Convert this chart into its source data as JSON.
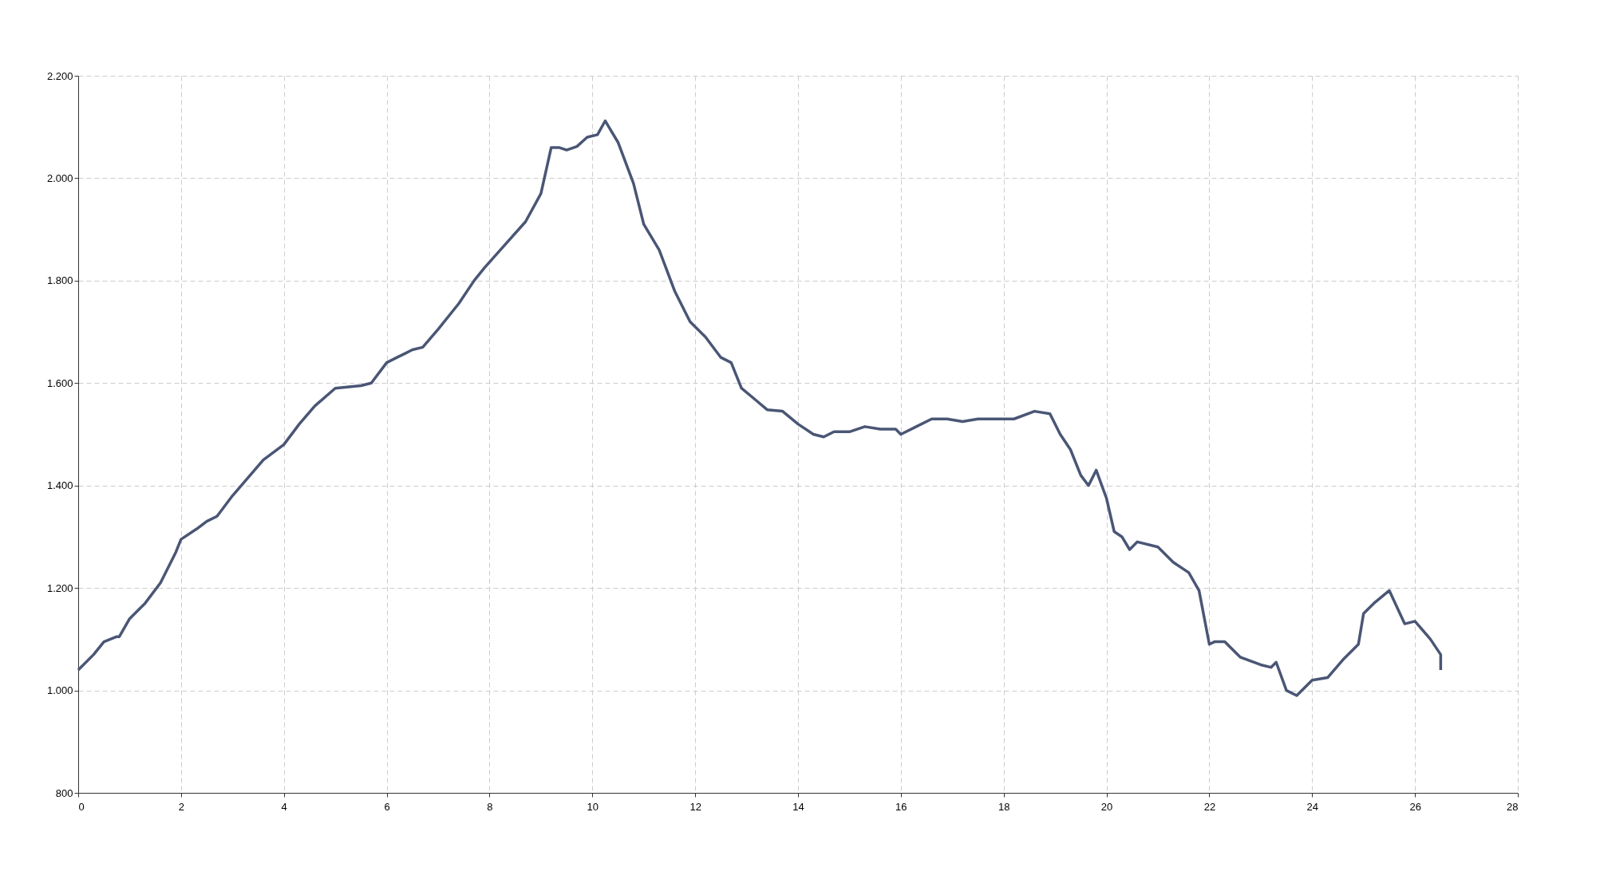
{
  "chart_data": {
    "type": "line",
    "xlim": [
      0,
      28
    ],
    "xticks": [
      0,
      2,
      4,
      6,
      8,
      10,
      12,
      14,
      16,
      18,
      20,
      22,
      24,
      26,
      28
    ],
    "ylim": [
      800,
      2200
    ],
    "yticks": [
      {
        "value": 800,
        "label": "800"
      },
      {
        "value": 1000,
        "label": "1.000"
      },
      {
        "value": 1200,
        "label": "1.200"
      },
      {
        "value": 1400,
        "label": "1.400"
      },
      {
        "value": 1600,
        "label": "1.600"
      },
      {
        "value": 1800,
        "label": "1.800"
      },
      {
        "value": 2000,
        "label": "2.000"
      },
      {
        "value": 2200,
        "label": "2.200"
      }
    ],
    "grid": true,
    "line_style": "solid",
    "series": [
      {
        "color": "#4a5675",
        "x": [
          0,
          0.3,
          0.5,
          0.75,
          0.8,
          1,
          1.3,
          1.6,
          1.9,
          2,
          2.3,
          2.5,
          2.7,
          3,
          3.3,
          3.6,
          4,
          4.3,
          4.6,
          5,
          5.5,
          5.7,
          6,
          6.2,
          6.5,
          6.7,
          7,
          7.4,
          7.7,
          7.9,
          8.3,
          8.7,
          9,
          9.2,
          9.35,
          9.5,
          9.7,
          9.9,
          10.1,
          10.25,
          10.5,
          10.8,
          11,
          11.3,
          11.6,
          11.9,
          12.2,
          12.5,
          12.7,
          12.9,
          13.2,
          13.4,
          13.7,
          14,
          14.3,
          14.5,
          14.7,
          15,
          15.3,
          15.6,
          15.9,
          16,
          16.3,
          16.6,
          16.9,
          17.2,
          17.5,
          17.8,
          18.2,
          18.6,
          18.9,
          19.1,
          19.3,
          19.5,
          19.65,
          19.8,
          20,
          20.15,
          20.3,
          20.45,
          20.6,
          21,
          21.3,
          21.6,
          21.8,
          22,
          22.1,
          22.3,
          22.6,
          23,
          23.2,
          23.3,
          23.5,
          23.7,
          24,
          24.3,
          24.6,
          24.9,
          25,
          25.2,
          25.5,
          25.8,
          26,
          26.3,
          26.5,
          26.5
        ],
        "values": [
          1040,
          1070,
          1095,
          1105,
          1105,
          1140,
          1170,
          1210,
          1270,
          1295,
          1315,
          1330,
          1340,
          1380,
          1415,
          1450,
          1480,
          1520,
          1555,
          1590,
          1595,
          1600,
          1640,
          1650,
          1665,
          1670,
          1705,
          1755,
          1800,
          1825,
          1870,
          1915,
          1970,
          2060,
          2060,
          2055,
          2062,
          2080,
          2085,
          2112,
          2070,
          1990,
          1910,
          1860,
          1780,
          1720,
          1690,
          1650,
          1640,
          1590,
          1565,
          1548,
          1545,
          1520,
          1500,
          1495,
          1505,
          1505,
          1515,
          1510,
          1510,
          1500,
          1515,
          1530,
          1530,
          1525,
          1530,
          1530,
          1530,
          1545,
          1540,
          1500,
          1470,
          1420,
          1400,
          1430,
          1375,
          1310,
          1300,
          1275,
          1290,
          1280,
          1250,
          1230,
          1195,
          1090,
          1095,
          1095,
          1065,
          1050,
          1045,
          1055,
          1000,
          990,
          1020,
          1025,
          1060,
          1090,
          1150,
          1170,
          1195,
          1130,
          1135,
          1100,
          1070,
          1040
        ]
      }
    ]
  }
}
